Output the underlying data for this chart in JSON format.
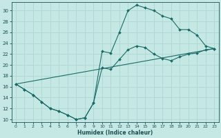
{
  "xlabel": "Humidex (Indice chaleur)",
  "bg_color": "#c5e8e5",
  "grid_color": "#b0d8d4",
  "line_color": "#1a6b65",
  "xlim": [
    -0.5,
    23.5
  ],
  "ylim": [
    9.5,
    31.5
  ],
  "xticks": [
    0,
    1,
    2,
    3,
    4,
    5,
    6,
    7,
    8,
    9,
    10,
    11,
    12,
    13,
    14,
    15,
    16,
    17,
    18,
    19,
    20,
    21,
    22,
    23
  ],
  "yticks": [
    10,
    12,
    14,
    16,
    18,
    20,
    22,
    24,
    26,
    28,
    30
  ],
  "line1_x": [
    0,
    1,
    2,
    3,
    4,
    5,
    6,
    7,
    8,
    9,
    10,
    11,
    12,
    13,
    14,
    15,
    16,
    17,
    18,
    19,
    20,
    21,
    22,
    23
  ],
  "line1_y": [
    16.5,
    15.5,
    14.5,
    13.2,
    12.0,
    11.5,
    10.8,
    10.0,
    10.3,
    13.0,
    22.5,
    22.2,
    26.0,
    30.0,
    31.0,
    30.5,
    30.0,
    29.0,
    28.5,
    26.5,
    26.5,
    25.5,
    23.5,
    23.0
  ],
  "line2_x": [
    0,
    1,
    2,
    3,
    4,
    5,
    6,
    7,
    8,
    9,
    10,
    11,
    12,
    13,
    14,
    15,
    16,
    17,
    18,
    19,
    20,
    21,
    22,
    23
  ],
  "line2_y": [
    16.5,
    15.5,
    14.5,
    13.2,
    12.0,
    11.5,
    10.8,
    10.0,
    10.3,
    13.0,
    19.5,
    19.2,
    21.0,
    22.8,
    23.5,
    23.2,
    22.0,
    21.2,
    20.8,
    21.5,
    22.0,
    22.2,
    22.8,
    23.0
  ],
  "line3_x": [
    0,
    23
  ],
  "line3_y": [
    16.5,
    23.0
  ]
}
